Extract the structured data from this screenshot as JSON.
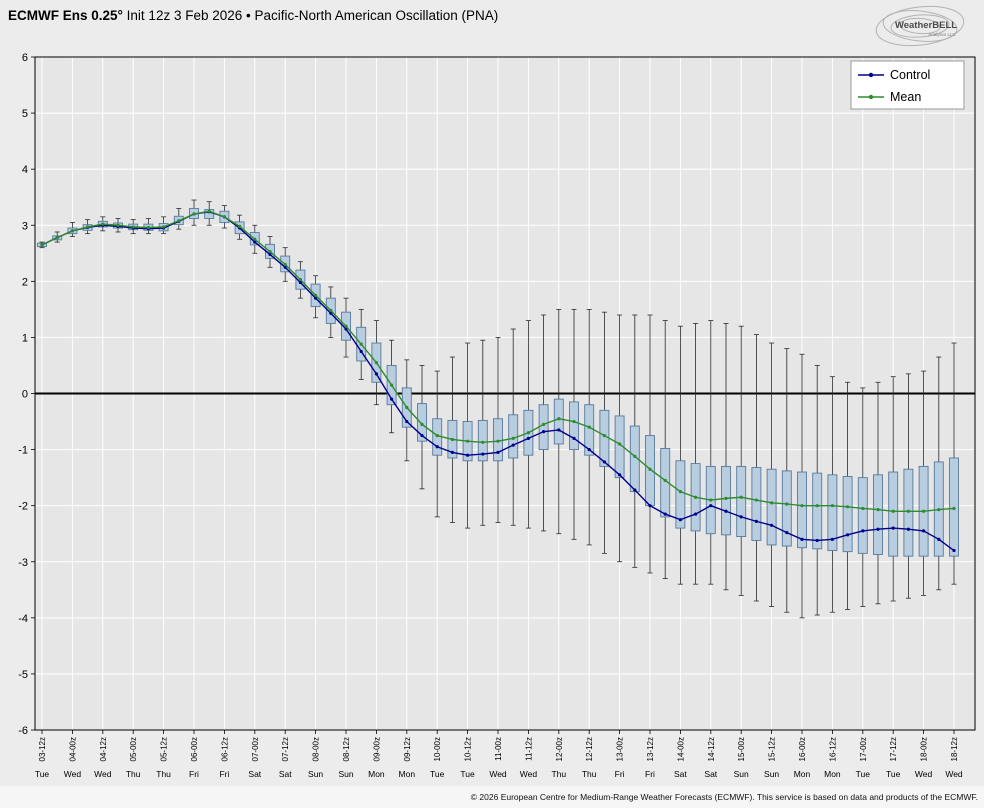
{
  "header": {
    "title_bold": "ECMWF Ens 0.25°",
    "title_rest": " Init 12z 3 Feb 2026 • Pacific-North American Oscillation (PNA)"
  },
  "logo": {
    "brand": "WeatherBELL",
    "sub": "Analytics LLC"
  },
  "legend": {
    "items": [
      {
        "label": "Control",
        "color": "#00008b"
      },
      {
        "label": "Mean",
        "color": "#2e8b2e"
      }
    ]
  },
  "footer": {
    "copyright": "© 2026 European Centre for Medium-Range Weather Forecasts (ECMWF). This service is based on data and products of the ECMWF."
  },
  "chart_data": {
    "type": "line",
    "subtype": "ensemble-box-whisker",
    "title": "ECMWF Ens 0.25° Init 12z 3 Feb 2026 • Pacific-North American Oscillation (PNA)",
    "ylim": [
      -6,
      6
    ],
    "yticks": [
      -6,
      -5,
      -4,
      -3,
      -2,
      -1,
      0,
      1,
      2,
      3,
      4,
      5,
      6
    ],
    "grid": true,
    "legend_position": "top-right",
    "x_tick_labels": [
      "03-12z",
      "04-00z",
      "04-12z",
      "05-00z",
      "05-12z",
      "06-00z",
      "06-12z",
      "07-00z",
      "07-12z",
      "08-00z",
      "08-12z",
      "09-00z",
      "09-12z",
      "10-00z",
      "10-12z",
      "11-00z",
      "11-12z",
      "12-00z",
      "12-12z",
      "13-00z",
      "13-12z",
      "14-00z",
      "14-12z",
      "15-00z",
      "15-12z",
      "16-00z",
      "16-12z",
      "17-00z",
      "17-12z",
      "18-00z",
      "18-12z"
    ],
    "day_labels": [
      "Tue",
      "Wed",
      "Wed",
      "Thu",
      "Thu",
      "Fri",
      "Fri",
      "Sat",
      "Sat",
      "Sun",
      "Sun",
      "Mon",
      "Mon",
      "Tue",
      "Tue",
      "Wed",
      "Wed",
      "Thu",
      "Thu",
      "Fri",
      "Fri",
      "Sat",
      "Sat",
      "Sun",
      "Sun",
      "Mon",
      "Mon",
      "Tue",
      "Tue",
      "Wed",
      "Wed"
    ],
    "steps_per_tick": 2,
    "series": [
      {
        "name": "Control",
        "color": "#00008b",
        "values": [
          2.65,
          2.78,
          2.9,
          2.96,
          3.0,
          2.98,
          2.95,
          2.94,
          2.95,
          3.07,
          3.2,
          3.24,
          3.15,
          2.95,
          2.7,
          2.48,
          2.25,
          1.98,
          1.7,
          1.43,
          1.15,
          0.75,
          0.35,
          -0.1,
          -0.5,
          -0.75,
          -0.95,
          -1.05,
          -1.1,
          -1.08,
          -1.05,
          -0.92,
          -0.8,
          -0.68,
          -0.65,
          -0.8,
          -1.0,
          -1.22,
          -1.45,
          -1.72,
          -2.0,
          -2.15,
          -2.25,
          -2.15,
          -2.0,
          -2.1,
          -2.2,
          -2.28,
          -2.35,
          -2.48,
          -2.6,
          -2.62,
          -2.6,
          -2.52,
          -2.45,
          -2.42,
          -2.4,
          -2.42,
          -2.45,
          -2.6,
          -2.8
        ]
      },
      {
        "name": "Mean",
        "color": "#2e8b2e",
        "values": [
          2.65,
          2.78,
          2.9,
          2.97,
          3.02,
          3.0,
          2.97,
          2.96,
          2.97,
          3.08,
          3.2,
          3.25,
          3.15,
          2.98,
          2.75,
          2.53,
          2.3,
          2.03,
          1.75,
          1.48,
          1.2,
          0.88,
          0.55,
          0.15,
          -0.25,
          -0.55,
          -0.75,
          -0.82,
          -0.85,
          -0.87,
          -0.85,
          -0.8,
          -0.7,
          -0.55,
          -0.45,
          -0.5,
          -0.6,
          -0.75,
          -0.9,
          -1.12,
          -1.35,
          -1.55,
          -1.75,
          -1.85,
          -1.9,
          -1.87,
          -1.85,
          -1.9,
          -1.95,
          -1.97,
          -2.0,
          -2.0,
          -2.0,
          -2.02,
          -2.05,
          -2.07,
          -2.1,
          -2.1,
          -2.1,
          -2.07,
          -2.05
        ]
      }
    ],
    "box_low": [
      2.62,
      2.74,
      2.85,
      2.91,
      2.97,
      2.95,
      2.92,
      2.91,
      2.9,
      3.01,
      3.12,
      3.12,
      3.05,
      2.85,
      2.65,
      2.41,
      2.17,
      1.86,
      1.55,
      1.25,
      0.95,
      0.58,
      0.2,
      -0.2,
      -0.6,
      -0.85,
      -1.1,
      -1.15,
      -1.2,
      -1.2,
      -1.2,
      -1.15,
      -1.1,
      -1.0,
      -0.9,
      -1.0,
      -1.1,
      -1.3,
      -1.5,
      -1.75,
      -2.0,
      -2.2,
      -2.4,
      -2.45,
      -2.5,
      -2.52,
      -2.55,
      -2.62,
      -2.7,
      -2.72,
      -2.75,
      -2.77,
      -2.8,
      -2.82,
      -2.85,
      -2.87,
      -2.9,
      -2.9,
      -2.9,
      -2.9,
      -2.9
    ],
    "box_high": [
      2.68,
      2.81,
      2.95,
      3.01,
      3.07,
      3.04,
      3.02,
      3.02,
      3.03,
      3.16,
      3.3,
      3.28,
      3.25,
      3.06,
      2.87,
      2.66,
      2.45,
      2.2,
      1.95,
      1.7,
      1.45,
      1.18,
      0.9,
      0.5,
      0.1,
      -0.18,
      -0.45,
      -0.48,
      -0.5,
      -0.48,
      -0.45,
      -0.38,
      -0.3,
      -0.2,
      -0.1,
      -0.15,
      -0.2,
      -0.3,
      -0.4,
      -0.58,
      -0.75,
      -0.98,
      -1.2,
      -1.25,
      -1.3,
      -1.3,
      -1.3,
      -1.32,
      -1.35,
      -1.38,
      -1.4,
      -1.42,
      -1.45,
      -1.48,
      -1.5,
      -1.45,
      -1.4,
      -1.35,
      -1.3,
      -1.22,
      -1.15
    ],
    "whisker_low": [
      2.6,
      2.7,
      2.8,
      2.85,
      2.9,
      2.88,
      2.85,
      2.85,
      2.85,
      2.93,
      3.0,
      3.0,
      2.95,
      2.75,
      2.5,
      2.25,
      2.0,
      1.7,
      1.35,
      1.0,
      0.65,
      0.25,
      -0.2,
      -0.7,
      -1.2,
      -1.7,
      -2.2,
      -2.3,
      -2.4,
      -2.35,
      -2.3,
      -2.35,
      -2.4,
      -2.45,
      -2.5,
      -2.6,
      -2.7,
      -2.85,
      -3.0,
      -3.1,
      -3.2,
      -3.3,
      -3.4,
      -3.4,
      -3.4,
      -3.5,
      -3.6,
      -3.7,
      -3.8,
      -3.9,
      -4.0,
      -3.95,
      -3.9,
      -3.85,
      -3.8,
      -3.75,
      -3.7,
      -3.65,
      -3.6,
      -3.5,
      -3.4
    ],
    "whisker_high": [
      2.7,
      2.88,
      3.05,
      3.1,
      3.15,
      3.12,
      3.1,
      3.12,
      3.15,
      3.3,
      3.45,
      3.42,
      3.35,
      3.18,
      3.0,
      2.8,
      2.6,
      2.35,
      2.1,
      1.9,
      1.7,
      1.5,
      1.3,
      0.95,
      0.6,
      0.5,
      0.4,
      0.65,
      0.9,
      0.95,
      1.0,
      1.15,
      1.3,
      1.4,
      1.5,
      1.5,
      1.5,
      1.45,
      1.4,
      1.4,
      1.4,
      1.3,
      1.2,
      1.25,
      1.3,
      1.25,
      1.2,
      1.05,
      0.9,
      0.8,
      0.7,
      0.5,
      0.3,
      0.2,
      0.1,
      0.2,
      0.3,
      0.35,
      0.4,
      0.65,
      0.9
    ],
    "colors": {
      "box_fill": "#b9cde1",
      "box_stroke": "#57799c",
      "whisker": "#2a2a2a",
      "grid": "#ffffff",
      "zero_line": "#000000",
      "plot_bg": "#e6e6e6",
      "frame": "#000000"
    }
  }
}
